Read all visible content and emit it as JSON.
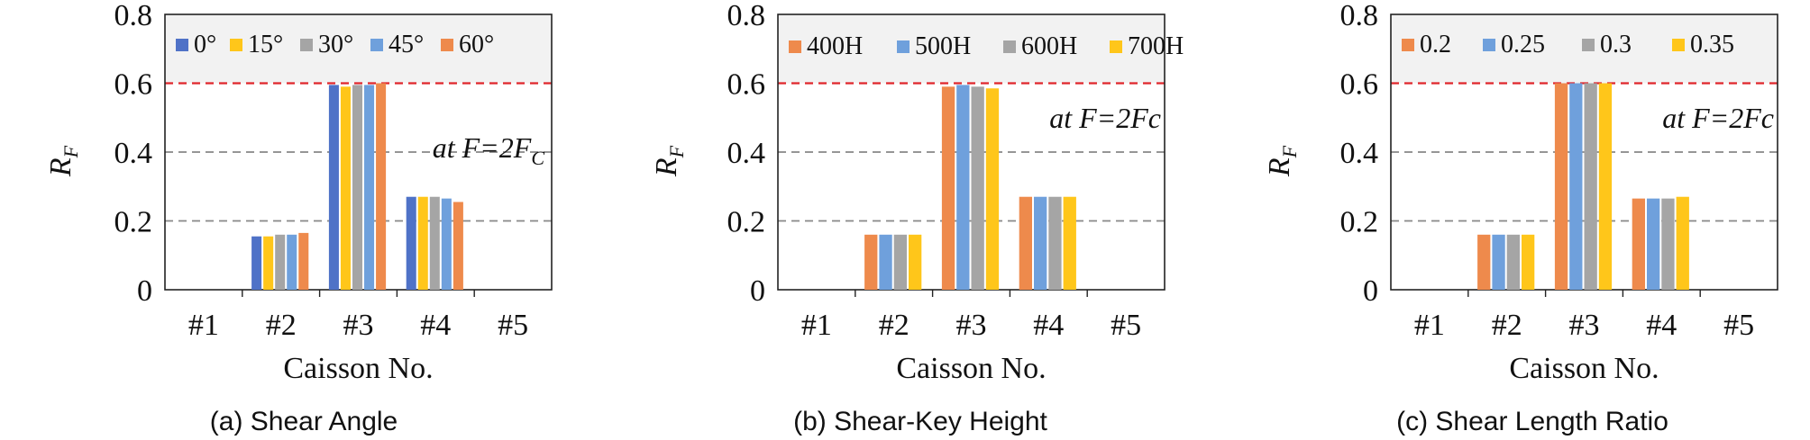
{
  "chart_data": [
    {
      "type": "bar",
      "caption": "(a) Shear Angle",
      "xlabel": "Caisson No.",
      "ylabel": "R",
      "ylabel_sub": "F",
      "annotation_main": "at F=2F",
      "annotation_sub": "C",
      "categories": [
        "#1",
        "#2",
        "#3",
        "#4",
        "#5"
      ],
      "ylim": [
        0,
        0.8
      ],
      "yticks": [
        "0",
        "0.2",
        "0.4",
        "0.6",
        "0.8"
      ],
      "yticks_values": [
        0,
        0.2,
        0.4,
        0.6,
        0.8
      ],
      "dashed_lines": [
        {
          "y": 0.6,
          "color": "#e0262b"
        },
        {
          "y": 0.4,
          "color": "#888888"
        },
        {
          "y": 0.2,
          "color": "#888888"
        }
      ],
      "series": [
        {
          "name": "0°",
          "color": "#4f72c7",
          "values": [
            0,
            0.155,
            0.595,
            0.27,
            0
          ]
        },
        {
          "name": "15°",
          "color": "#ffc61a",
          "values": [
            0,
            0.155,
            0.59,
            0.27,
            0
          ]
        },
        {
          "name": "30°",
          "color": "#a5a5a5",
          "values": [
            0,
            0.16,
            0.595,
            0.27,
            0
          ]
        },
        {
          "name": "45°",
          "color": "#6fa0dc",
          "values": [
            0,
            0.16,
            0.595,
            0.265,
            0
          ]
        },
        {
          "name": "60°",
          "color": "#ee8a4c",
          "values": [
            0,
            0.165,
            0.6,
            0.255,
            0
          ]
        }
      ]
    },
    {
      "type": "bar",
      "caption": "(b) Shear-Key Height",
      "xlabel": "Caisson No.",
      "ylabel": "R",
      "ylabel_sub": "F",
      "annotation_main": "at F=2Fc",
      "annotation_sub": "",
      "categories": [
        "#1",
        "#2",
        "#3",
        "#4",
        "#5"
      ],
      "ylim": [
        0,
        0.8
      ],
      "yticks": [
        "0",
        "0.2",
        "0.4",
        "0.6",
        "0.8"
      ],
      "yticks_values": [
        0,
        0.2,
        0.4,
        0.6,
        0.8
      ],
      "dashed_lines": [
        {
          "y": 0.6,
          "color": "#e0262b"
        },
        {
          "y": 0.4,
          "color": "#888888"
        },
        {
          "y": 0.2,
          "color": "#888888"
        }
      ],
      "series": [
        {
          "name": "400H",
          "color": "#ee8a4c",
          "values": [
            0,
            0.16,
            0.59,
            0.27,
            0
          ]
        },
        {
          "name": "500H",
          "color": "#6fa0dc",
          "values": [
            0,
            0.16,
            0.595,
            0.27,
            0
          ]
        },
        {
          "name": "600H",
          "color": "#a5a5a5",
          "values": [
            0,
            0.16,
            0.59,
            0.27,
            0
          ]
        },
        {
          "name": "700H",
          "color": "#ffc61a",
          "values": [
            0,
            0.16,
            0.585,
            0.27,
            0
          ]
        }
      ]
    },
    {
      "type": "bar",
      "caption": "(c) Shear Length Ratio",
      "xlabel": "Caisson No.",
      "ylabel": "R",
      "ylabel_sub": "F",
      "annotation_main": "at F=2Fc",
      "annotation_sub": "",
      "categories": [
        "#1",
        "#2",
        "#3",
        "#4",
        "#5"
      ],
      "ylim": [
        0,
        0.8
      ],
      "yticks": [
        "0",
        "0.2",
        "0.4",
        "0.6",
        "0.8"
      ],
      "yticks_values": [
        0,
        0.2,
        0.4,
        0.6,
        0.8
      ],
      "dashed_lines": [
        {
          "y": 0.6,
          "color": "#e0262b"
        },
        {
          "y": 0.4,
          "color": "#888888"
        },
        {
          "y": 0.2,
          "color": "#888888"
        }
      ],
      "series": [
        {
          "name": "0.2",
          "color": "#ee8a4c",
          "values": [
            0,
            0.16,
            0.6,
            0.265,
            0
          ]
        },
        {
          "name": "0.25",
          "color": "#6fa0dc",
          "values": [
            0,
            0.16,
            0.6,
            0.265,
            0
          ]
        },
        {
          "name": "0.3",
          "color": "#a5a5a5",
          "values": [
            0,
            0.16,
            0.6,
            0.265,
            0
          ]
        },
        {
          "name": "0.35",
          "color": "#ffc61a",
          "values": [
            0,
            0.16,
            0.6,
            0.27,
            0
          ]
        }
      ]
    }
  ]
}
